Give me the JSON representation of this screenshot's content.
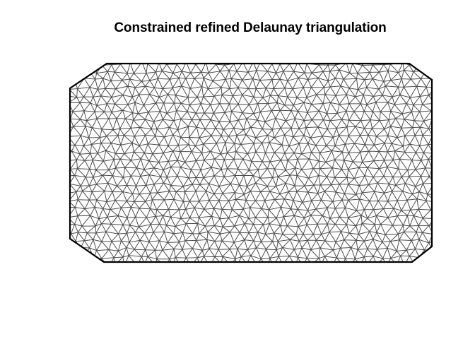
{
  "title": "Constrained refined Delaunay triangulation",
  "colors": {
    "background": "#ffffff",
    "mesh_edges": "#4d4d4d",
    "boundary": "#000000",
    "title": "#000000"
  },
  "figure": {
    "type": "triangulation mesh",
    "shape": "rectangle with chamfered corners",
    "edge_style": "thin grey triangle edges",
    "boundary_style": "thick black outline"
  }
}
